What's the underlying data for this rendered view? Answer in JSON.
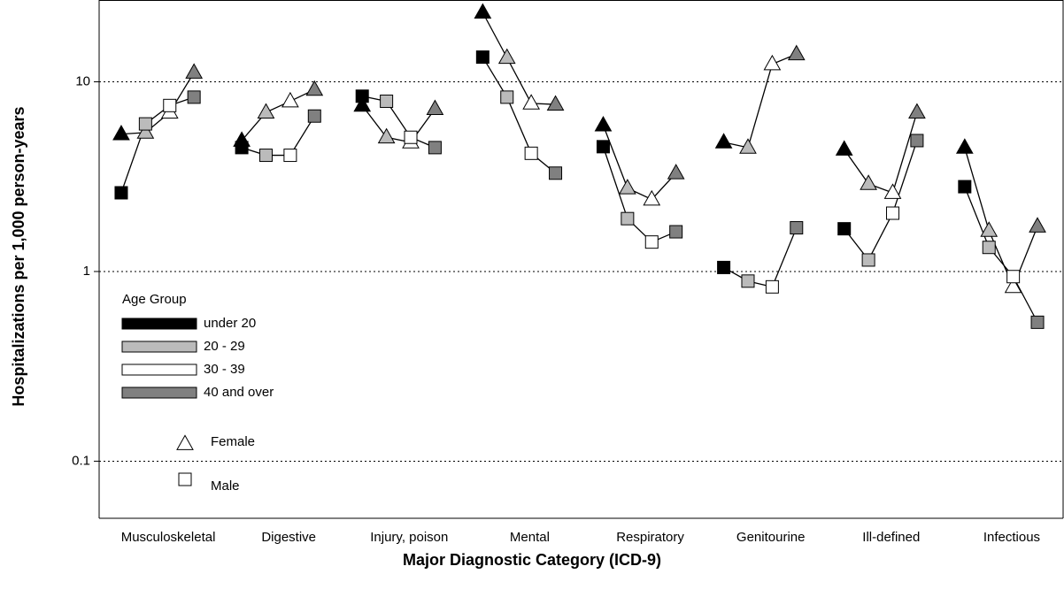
{
  "chart_data": {
    "type": "line",
    "x_label": "Major Diagnostic Category (ICD-9)",
    "y_label": "Hospitalizations per 1,000 person-years",
    "log_y": true,
    "ylim": [
      0.05,
      27
    ],
    "yticks": [
      0.1,
      1,
      10
    ],
    "grid": true,
    "legend_title": "Age Group",
    "categories": [
      "Musculoskeletal",
      "Digestive",
      "Injury, poison",
      "Mental",
      "Respiratory",
      "Genitourine",
      "Ill-defined",
      "Infectious"
    ],
    "markers": [
      {
        "name": "Female",
        "shape": "triangle"
      },
      {
        "name": "Male",
        "shape": "square"
      }
    ],
    "series": [
      {
        "name": "under 20",
        "color": "#000000",
        "values": [
          [
            5.3,
            4.9,
            7.5,
            23.2,
            5.9,
            4.8,
            4.4,
            4.5
          ],
          [
            2.6,
            4.5,
            8.4,
            13.5,
            4.55,
            1.05,
            1.68,
            2.8
          ]
        ]
      },
      {
        "name": "20 - 29",
        "color": "#bbbbbb",
        "values": [
          [
            5.4,
            6.9,
            5.1,
            13.4,
            2.75,
            4.5,
            2.9,
            1.64
          ],
          [
            6.0,
            4.1,
            7.9,
            8.3,
            1.9,
            0.89,
            1.15,
            1.34
          ]
        ]
      },
      {
        "name": "30 - 39",
        "color": "#ffffff",
        "values": [
          [
            6.9,
            7.9,
            4.8,
            7.7,
            2.4,
            12.4,
            2.6,
            0.83
          ],
          [
            7.5,
            4.1,
            5.1,
            4.2,
            1.43,
            0.83,
            2.03,
            0.94
          ]
        ]
      },
      {
        "name": "40 and over",
        "color": "#808080",
        "values": [
          [
            11.2,
            9.1,
            7.2,
            7.6,
            3.3,
            14.0,
            6.9,
            1.73
          ],
          [
            8.3,
            6.6,
            4.5,
            3.3,
            1.62,
            1.7,
            4.9,
            0.54
          ]
        ]
      }
    ]
  }
}
